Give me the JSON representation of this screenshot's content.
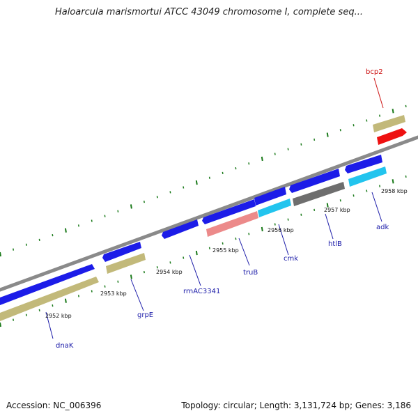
{
  "title": "Haloarcula marismortui ATCC 43049 chromosome I, complete seq...",
  "footer": {
    "accession": "Accession: NC_006396",
    "topology": "Topology: circular; Length: 3,131,724 bp; Genes: 3,186"
  },
  "colors": {
    "backbone": "#8a8a8a",
    "tick": "#1a7a1a",
    "gene_label": "#1a1aa8",
    "gene_label_highlight": "#cc1111",
    "cds_blue": "#1c1ce8",
    "gene_khaki": "#c2b97a",
    "gene_red": "#ee1111",
    "gene_pink": "#ec8a8a",
    "gene_cyan": "#22c4ee",
    "gene_gray": "#6e6e6e"
  },
  "kbp_labels": [
    "2952 kbp",
    "2953 kbp",
    "2954 kbp",
    "2955 kbp",
    "2956 kbp",
    "2957 kbp",
    "2958 kbp"
  ],
  "genes": [
    {
      "name": "dnaK",
      "highlight": false
    },
    {
      "name": "grpE",
      "highlight": false
    },
    {
      "name": "rrnAC3341",
      "highlight": false
    },
    {
      "name": "truB",
      "highlight": false
    },
    {
      "name": "cmk",
      "highlight": false
    },
    {
      "name": "htlB",
      "highlight": false
    },
    {
      "name": "adk",
      "highlight": false
    },
    {
      "name": "bcp2",
      "highlight": true
    }
  ]
}
